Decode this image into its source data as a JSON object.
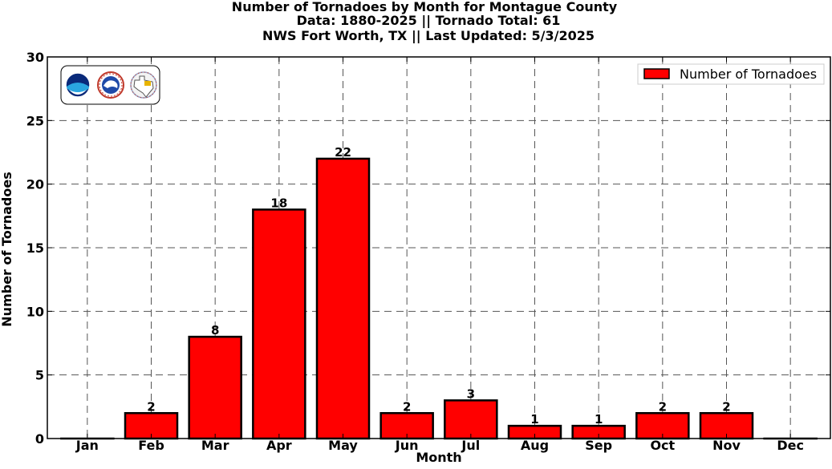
{
  "chart_data": {
    "type": "bar",
    "title": [
      "Number of Tornadoes by Month for Montague County",
      "Data: 1880-2025 || Tornado Total: 61",
      "NWS Fort Worth, TX || Last Updated: 5/3/2025"
    ],
    "xlabel": "Month",
    "ylabel": "Number of Tornadoes",
    "categories": [
      "Jan",
      "Feb",
      "Mar",
      "Apr",
      "May",
      "Jun",
      "Jul",
      "Aug",
      "Sep",
      "Oct",
      "Nov",
      "Dec"
    ],
    "series": [
      {
        "name": "Number of Tornadoes",
        "values": [
          0,
          2,
          8,
          18,
          22,
          2,
          3,
          1,
          1,
          2,
          2,
          0
        ],
        "color": "#ff0000",
        "edge_color": "#000000"
      }
    ],
    "data_labels": [
      "",
      "2",
      "8",
      "18",
      "22",
      "2",
      "3",
      "1",
      "1",
      "2",
      "2",
      ""
    ],
    "ylim": [
      0,
      30
    ],
    "yticks": [
      0,
      5,
      10,
      15,
      20,
      25,
      30
    ],
    "grid": true,
    "legend_position": "top-right",
    "logos": [
      "noaa-logo",
      "nws-logo",
      "nws-fort-worth-logo"
    ]
  }
}
